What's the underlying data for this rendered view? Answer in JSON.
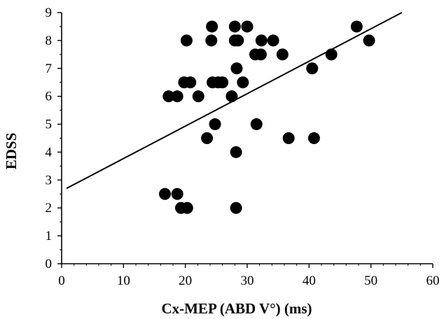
{
  "chart_data": {
    "type": "scatter",
    "title": "",
    "xlabel": "Cx-MEP (ABD V°) (ms)",
    "ylabel": "EDSS",
    "xlim": [
      0,
      60
    ],
    "ylim": [
      0,
      9
    ],
    "x_ticks": [
      "0",
      "10",
      "20",
      "30",
      "40",
      "50",
      "60"
    ],
    "y_ticks": [
      "0",
      "1",
      "2",
      "3",
      "4",
      "5",
      "6",
      "7",
      "8",
      "9"
    ],
    "grid": false,
    "legend": "none",
    "marker_color": "#000000",
    "points": [
      {
        "x": 24.3,
        "y": 8.5
      },
      {
        "x": 28.0,
        "y": 8.5
      },
      {
        "x": 30.0,
        "y": 8.5
      },
      {
        "x": 47.7,
        "y": 8.5
      },
      {
        "x": 20.2,
        "y": 8.0
      },
      {
        "x": 24.2,
        "y": 8.0
      },
      {
        "x": 28.0,
        "y": 8.0
      },
      {
        "x": 28.5,
        "y": 8.0
      },
      {
        "x": 32.3,
        "y": 8.0
      },
      {
        "x": 34.2,
        "y": 8.0
      },
      {
        "x": 49.7,
        "y": 8.0
      },
      {
        "x": 31.3,
        "y": 7.5
      },
      {
        "x": 32.2,
        "y": 7.5
      },
      {
        "x": 35.7,
        "y": 7.5
      },
      {
        "x": 43.6,
        "y": 7.5
      },
      {
        "x": 28.3,
        "y": 7.0
      },
      {
        "x": 40.5,
        "y": 7.0
      },
      {
        "x": 19.8,
        "y": 6.5
      },
      {
        "x": 20.8,
        "y": 6.5
      },
      {
        "x": 24.4,
        "y": 6.5
      },
      {
        "x": 25.3,
        "y": 6.5
      },
      {
        "x": 26.0,
        "y": 6.5
      },
      {
        "x": 29.3,
        "y": 6.5
      },
      {
        "x": 17.3,
        "y": 6.0
      },
      {
        "x": 18.7,
        "y": 6.0
      },
      {
        "x": 22.1,
        "y": 6.0
      },
      {
        "x": 27.5,
        "y": 6.0
      },
      {
        "x": 24.8,
        "y": 5.0
      },
      {
        "x": 31.5,
        "y": 5.0
      },
      {
        "x": 23.5,
        "y": 4.5
      },
      {
        "x": 36.7,
        "y": 4.5
      },
      {
        "x": 40.8,
        "y": 4.5
      },
      {
        "x": 28.2,
        "y": 4.0
      },
      {
        "x": 16.7,
        "y": 2.5
      },
      {
        "x": 18.7,
        "y": 2.5
      },
      {
        "x": 19.3,
        "y": 2.0
      },
      {
        "x": 20.3,
        "y": 2.0
      },
      {
        "x": 28.2,
        "y": 2.0
      }
    ],
    "trendline": {
      "x": [
        0.8,
        55.0
      ],
      "y": [
        2.7,
        9.0
      ]
    }
  }
}
